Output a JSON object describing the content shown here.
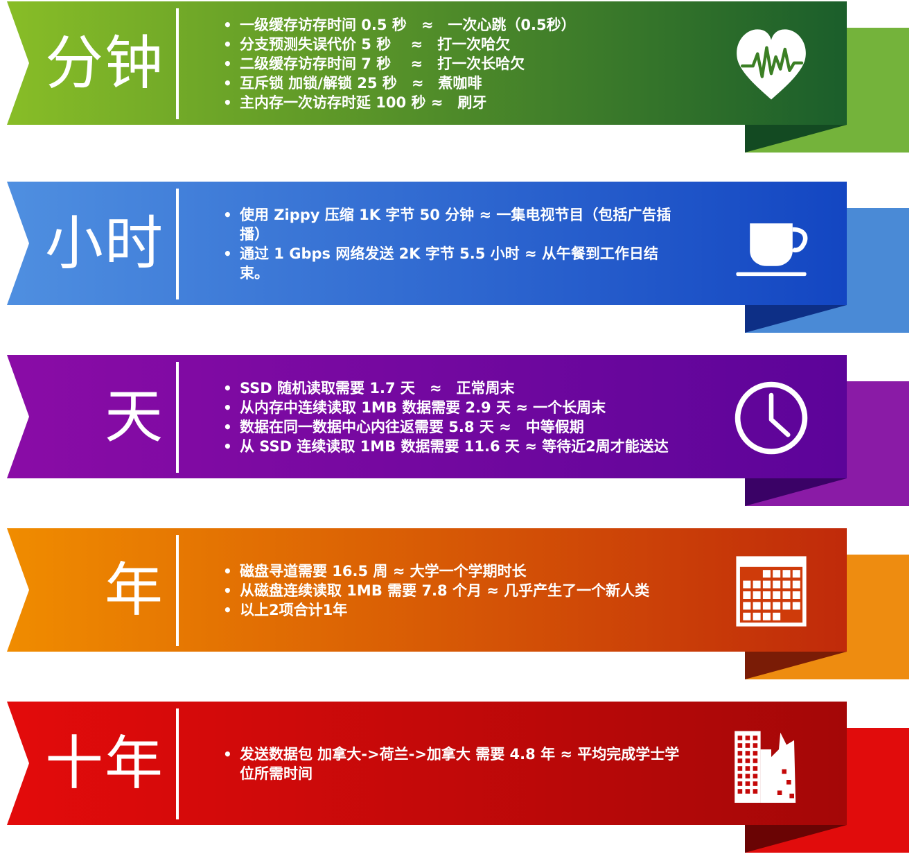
{
  "banners": [
    {
      "unit": "分钟",
      "icon": "heartbeat-icon",
      "colors": {
        "start": "#88bd27",
        "end": "#1b5e2b",
        "back": "#74b33b",
        "shadow": "#134a22"
      },
      "items": [
        "一级缓存访存时间 0.5 秒　≈　一次心跳（0.5秒）",
        "分支预测失误代价 5 秒　 ≈　打一次哈欠",
        "二级缓存访存时间 7 秒　 ≈　打一次长哈欠",
        "互斥锁 加锁/解锁 25 秒　≈　煮咖啡",
        "主内存一次访存时延 100 秒 ≈　刷牙"
      ]
    },
    {
      "unit": "小时",
      "icon": "coffee-cup-icon",
      "colors": {
        "start": "#4f8fe0",
        "end": "#1346c2",
        "back": "#4a8ad6",
        "shadow": "#0d2f86"
      },
      "items": [
        "使用 Zippy 压缩 1K 字节 50 分钟 ≈ 一集电视节目（包括广告插播）",
        "通过 1 Gbps 网络发送 2K 字节 5.5 小时 ≈ 从午餐到工作日结束。"
      ]
    },
    {
      "unit": "天",
      "icon": "clock-icon",
      "colors": {
        "start": "#8a0ca6",
        "end": "#5c0499",
        "back": "#8a1ba6",
        "shadow": "#3a0266"
      },
      "items": [
        "SSD 随机读取需要 1.7 天　≈　正常周末",
        "从内存中连续读取 1MB 数据需要 2.9 天 ≈ 一个长周末",
        "数据在同一数据中心内往返需要 5.8 天 ≈　中等假期",
        "从 SSD 连续读取 1MB 数据需要 11.6 天 ≈ 等待近2周才能送达"
      ]
    },
    {
      "unit": "年",
      "icon": "calendar-icon",
      "colors": {
        "start": "#f08c00",
        "end": "#c02a0a",
        "back": "#ee8c10",
        "shadow": "#7a1c06"
      },
      "items": [
        "磁盘寻道需要 16.5 周 ≈ 大学一个学期时长",
        "从磁盘连续读取 1MB 需要 7.8 个月 ≈ 几乎产生了一个新人类",
        "以上2项合计1年"
      ]
    },
    {
      "unit": "十年",
      "icon": "city-buildings-icon",
      "colors": {
        "start": "#e30b0b",
        "end": "#a40707",
        "back": "#e10c0c",
        "shadow": "#6a0404"
      },
      "items": [
        "发送数据包 加拿大->荷兰->加拿大 需要 4.8 年 ≈ 平均完成学士学位所需时间"
      ]
    }
  ]
}
